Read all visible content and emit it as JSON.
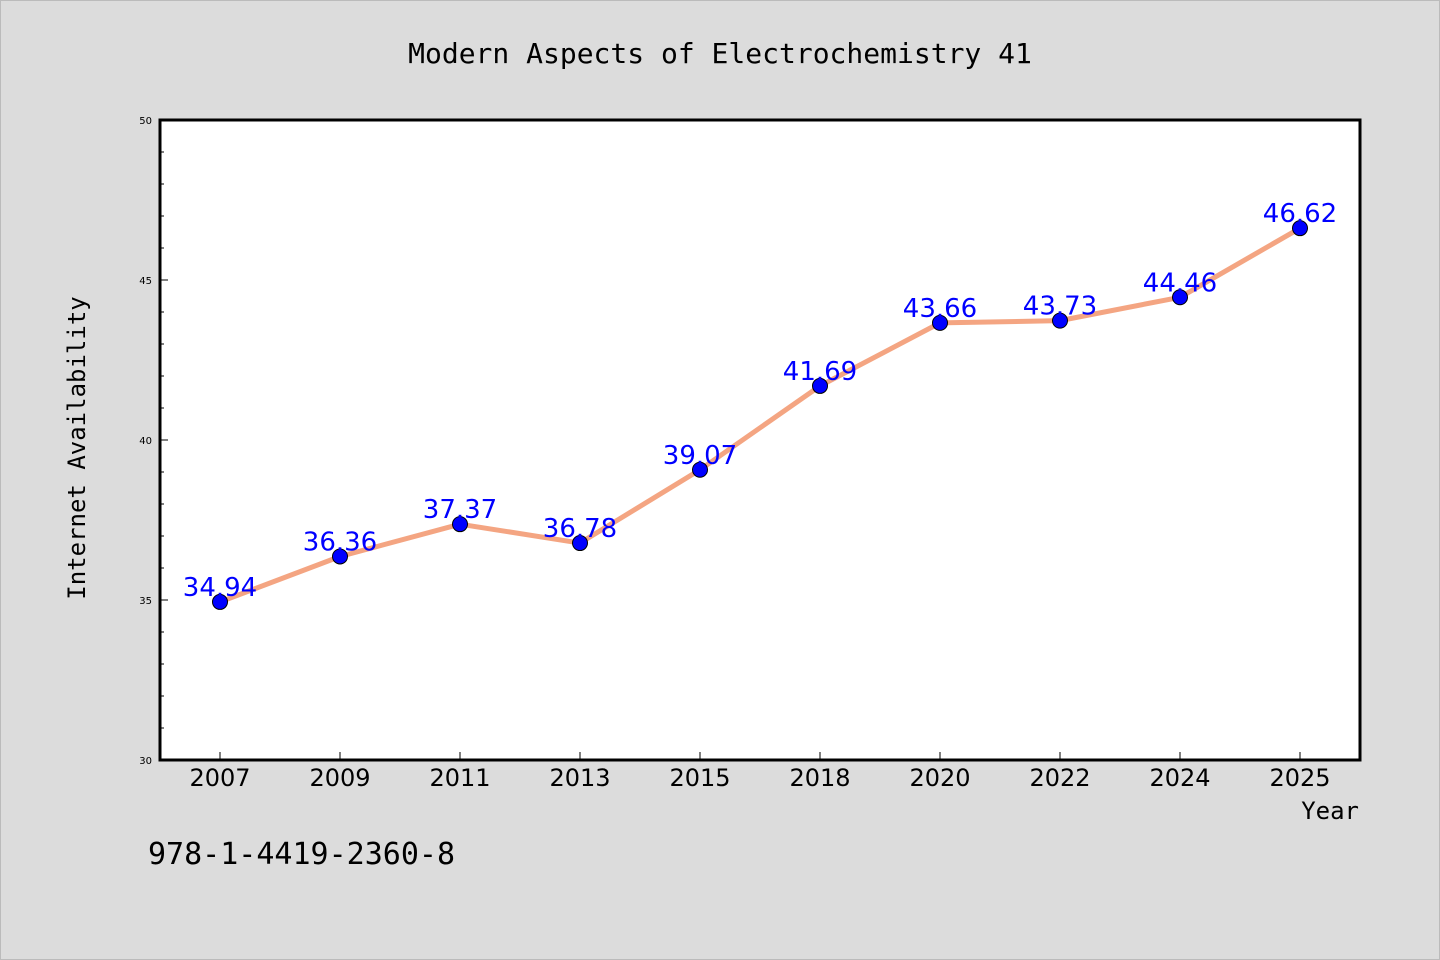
{
  "chart_data": {
    "type": "line",
    "title": "Modern Aspects of Electrochemistry 41",
    "xlabel": "Year",
    "ylabel": "Internet Availability",
    "categories": [
      "2007",
      "2009",
      "2011",
      "2013",
      "2015",
      "2018",
      "2020",
      "2022",
      "2024",
      "2025"
    ],
    "series": [
      {
        "values": [
          34.94,
          36.36,
          37.37,
          36.78,
          39.07,
          41.69,
          43.66,
          43.73,
          44.46,
          46.62
        ],
        "labels": [
          "34.94",
          "36.36",
          "37.37",
          "36.78",
          "39.07",
          "41.69",
          "43.66",
          "43.73",
          "44.46",
          "46.62"
        ],
        "line_color": "#f4a582",
        "marker_color": "#0000ff",
        "label_color": "#0000ff"
      }
    ],
    "ylim": [
      30,
      50
    ],
    "yticks": [
      "30",
      "35",
      "40",
      "45",
      "50"
    ],
    "grid": false,
    "legend": "none"
  },
  "footer": {
    "isbn": "978-1-4419-2360-8"
  },
  "colors": {
    "background": "#dcdcdc",
    "plot_background": "#ffffff",
    "axis": "#000000"
  }
}
